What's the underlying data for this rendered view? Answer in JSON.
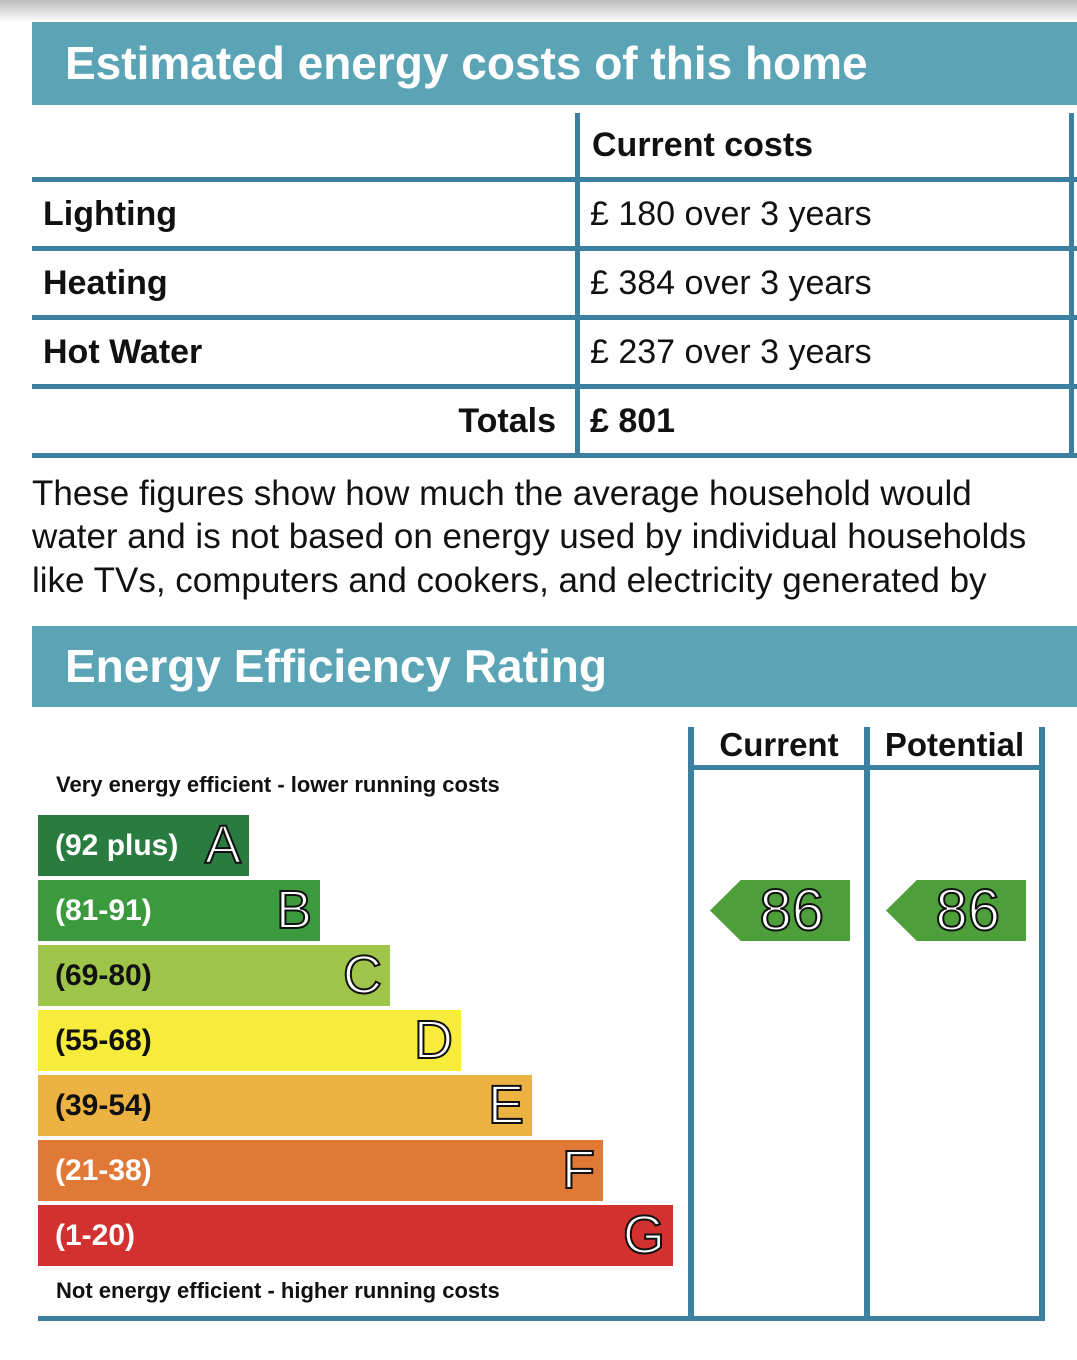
{
  "costs": {
    "title": "Estimated energy costs of this home",
    "column_header": "Current costs",
    "rows": [
      {
        "label": "Lighting",
        "value": "£ 180 over 3 years"
      },
      {
        "label": "Heating",
        "value": "£ 384 over 3 years"
      },
      {
        "label": "Hot Water",
        "value": "£ 237 over 3 years"
      }
    ],
    "totals_label": "Totals",
    "totals_value": "£ 801"
  },
  "description": [
    "These figures show how much the average household would",
    "water and is not based on energy used by individual households",
    "like TVs, computers and cookers, and electricity generated by"
  ],
  "rating": {
    "title": "Energy Efficiency Rating",
    "top_note": "Very energy efficient - lower running costs",
    "bottom_note": "Not energy efficient - higher running costs",
    "col_current": "Current",
    "col_potential": "Potential",
    "bands": [
      {
        "range": "(92 plus)",
        "letter": "A",
        "color": "#2a7b3f"
      },
      {
        "range": "(81-91)",
        "letter": "B",
        "color": "#3b9a3e"
      },
      {
        "range": "(69-80)",
        "letter": "C",
        "color": "#9ec44a"
      },
      {
        "range": "(55-68)",
        "letter": "D",
        "color": "#f7ec3c"
      },
      {
        "range": "(39-54)",
        "letter": "E",
        "color": "#edb342"
      },
      {
        "range": "(21-38)",
        "letter": "F",
        "color": "#e07836"
      },
      {
        "range": "(1-20)",
        "letter": "G",
        "color": "#d3312f"
      }
    ],
    "current_value": "86",
    "potential_value": "86",
    "indicator_color": "#4e9e3c"
  }
}
